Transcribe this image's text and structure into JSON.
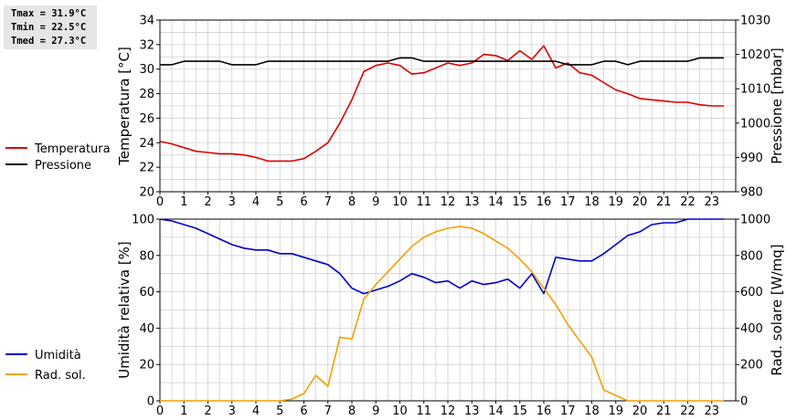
{
  "stats": {
    "tmax": "Tmax = 31.9°C",
    "tmin": "Tmin = 22.5°C",
    "tmed": "Tmed = 27.3°C"
  },
  "colors": {
    "temperature": "#dd0000",
    "pressure": "#000000",
    "humidity": "#0000cc",
    "radiation": "#f0a000",
    "grid": "#d0d0d0"
  },
  "chart_data": [
    {
      "type": "line",
      "xlim": [
        0,
        24
      ],
      "x_ticks": [
        "0",
        "1",
        "2",
        "3",
        "4",
        "5",
        "6",
        "7",
        "8",
        "9",
        "10",
        "11",
        "12",
        "13",
        "14",
        "15",
        "16",
        "17",
        "18",
        "19",
        "20",
        "21",
        "22",
        "23"
      ],
      "ylabel": "Temperatura [°C]",
      "ylim": [
        20,
        34
      ],
      "y_ticks": [
        "20",
        "22",
        "24",
        "26",
        "28",
        "30",
        "32",
        "34"
      ],
      "y2label": "Pressione [mbar]",
      "y2lim": [
        980,
        1030
      ],
      "y2_ticks": [
        "980",
        "990",
        "1000",
        "1010",
        "1020",
        "1030"
      ],
      "grid": true,
      "legend_position": "left",
      "series": [
        {
          "name": "Temperatura",
          "axis": "left",
          "x": [
            0,
            0.5,
            1,
            1.5,
            2,
            2.5,
            3,
            3.5,
            4,
            4.5,
            5,
            5.5,
            6,
            6.5,
            7,
            7.5,
            8,
            8.5,
            9,
            9.5,
            10,
            10.5,
            11,
            11.5,
            12,
            12.5,
            13,
            13.5,
            14,
            14.5,
            15,
            15.5,
            16,
            16.5,
            17,
            17.5,
            18,
            18.5,
            19,
            19.5,
            20,
            20.5,
            21,
            21.5,
            22,
            22.5,
            23,
            23.5
          ],
          "y": [
            24.1,
            23.9,
            23.6,
            23.3,
            23.2,
            23.1,
            23.1,
            23.0,
            22.8,
            22.5,
            22.5,
            22.5,
            22.7,
            23.3,
            24.0,
            25.6,
            27.5,
            29.8,
            30.3,
            30.5,
            30.3,
            29.6,
            29.7,
            30.1,
            30.5,
            30.3,
            30.5,
            31.2,
            31.1,
            30.7,
            31.5,
            30.8,
            31.9,
            30.1,
            30.5,
            29.7,
            29.5,
            28.9,
            28.3,
            28.0,
            27.6,
            27.5,
            27.4,
            27.3,
            27.3,
            27.1,
            27.0,
            27.0
          ]
        },
        {
          "name": "Pressione",
          "axis": "right",
          "x": [
            0,
            0.5,
            1,
            1.5,
            2,
            2.5,
            3,
            3.5,
            4,
            4.5,
            5,
            5.5,
            6,
            6.5,
            7,
            7.5,
            8,
            8.5,
            9,
            9.5,
            10,
            10.5,
            11,
            11.5,
            12,
            12.5,
            13,
            13.5,
            14,
            14.5,
            15,
            15.5,
            16,
            16.5,
            17,
            17.5,
            18,
            18.5,
            19,
            19.5,
            20,
            20.5,
            21,
            21.5,
            22,
            22.5,
            23,
            23.5
          ],
          "y": [
            1017,
            1017,
            1018,
            1018,
            1018,
            1018,
            1017,
            1017,
            1017,
            1018,
            1018,
            1018,
            1018,
            1018,
            1018,
            1018,
            1018,
            1018,
            1018,
            1018,
            1019,
            1019,
            1018,
            1018,
            1018,
            1018,
            1018,
            1018,
            1018,
            1018,
            1018,
            1018,
            1018,
            1018,
            1017,
            1017,
            1017,
            1018,
            1018,
            1017,
            1018,
            1018,
            1018,
            1018,
            1018,
            1019,
            1019,
            1019
          ]
        }
      ]
    },
    {
      "type": "line",
      "xlim": [
        0,
        24
      ],
      "x_ticks": [
        "0",
        "1",
        "2",
        "3",
        "4",
        "5",
        "6",
        "7",
        "8",
        "9",
        "10",
        "11",
        "12",
        "13",
        "14",
        "15",
        "16",
        "17",
        "18",
        "19",
        "20",
        "21",
        "22",
        "23"
      ],
      "ylabel": "Umidità relativa [%]",
      "ylim": [
        0,
        100
      ],
      "y_ticks": [
        "0",
        "20",
        "40",
        "60",
        "80",
        "100"
      ],
      "y2label": "Rad. solare [W/mq]",
      "y2lim": [
        0,
        1000
      ],
      "y2_ticks": [
        "0",
        "200",
        "400",
        "600",
        "800",
        "1000"
      ],
      "grid": true,
      "legend_position": "left",
      "series": [
        {
          "name": "Umidità",
          "axis": "left",
          "x": [
            0,
            0.5,
            1,
            1.5,
            2,
            2.5,
            3,
            3.5,
            4,
            4.5,
            5,
            5.5,
            6,
            6.5,
            7,
            7.5,
            8,
            8.5,
            9,
            9.5,
            10,
            10.5,
            11,
            11.5,
            12,
            12.5,
            13,
            13.5,
            14,
            14.5,
            15,
            15.5,
            16,
            16.5,
            17,
            17.5,
            18,
            18.5,
            19,
            19.5,
            20,
            20.5,
            21,
            21.5,
            22,
            22.5,
            23,
            23.5
          ],
          "y": [
            100,
            99,
            97,
            95,
            92,
            89,
            86,
            84,
            83,
            83,
            81,
            81,
            79,
            77,
            75,
            70,
            62,
            59,
            61,
            63,
            66,
            70,
            68,
            65,
            66,
            62,
            66,
            64,
            65,
            67,
            62,
            70,
            59,
            79,
            78,
            77,
            77,
            81,
            86,
            91,
            93,
            97,
            98,
            98,
            100,
            100,
            100,
            100
          ]
        },
        {
          "name": "Rad. sol.",
          "axis": "right",
          "x": [
            0,
            0.5,
            1,
            1.5,
            2,
            2.5,
            3,
            3.5,
            4,
            4.5,
            5,
            5.5,
            6,
            6.5,
            7,
            7.5,
            8,
            8.5,
            9,
            9.5,
            10,
            10.5,
            11,
            11.5,
            12,
            12.5,
            13,
            13.5,
            14,
            14.5,
            15,
            15.5,
            16,
            16.5,
            17,
            17.5,
            18,
            18.5,
            19,
            19.5,
            20,
            20.5,
            21,
            21.5,
            22,
            22.5,
            23,
            23.5
          ],
          "y": [
            0,
            0,
            0,
            0,
            0,
            0,
            0,
            0,
            0,
            0,
            0,
            10,
            40,
            140,
            80,
            350,
            340,
            560,
            640,
            710,
            780,
            850,
            900,
            930,
            950,
            960,
            950,
            920,
            880,
            840,
            780,
            710,
            620,
            530,
            420,
            330,
            240,
            60,
            30,
            0,
            0,
            0,
            0,
            0,
            0,
            0,
            0,
            0
          ]
        }
      ]
    }
  ]
}
